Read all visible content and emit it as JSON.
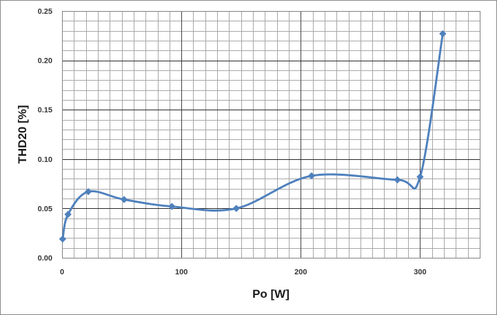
{
  "chart_data": {
    "type": "line",
    "title": "",
    "xlabel": "Po [W]",
    "ylabel": "THD20 [%]",
    "xlim": [
      0,
      350
    ],
    "ylim": [
      0,
      0.25
    ],
    "x_major_ticks": [
      0,
      100,
      200,
      300
    ],
    "x_major_tick_labels": [
      "0",
      "100",
      "200",
      "300"
    ],
    "y_major_ticks": [
      0,
      0.05,
      0.1,
      0.15,
      0.2,
      0.25
    ],
    "y_major_tick_labels": [
      "0.00",
      "0.05",
      "0.10",
      "0.15",
      "0.20",
      "0.25"
    ],
    "x_minor_step": 10,
    "y_minor_step": 0.01,
    "grid": true,
    "smooth": true,
    "series": [
      {
        "color": "#4f81bd",
        "marker": "diamond",
        "x": [
          0.5,
          5,
          22,
          52,
          92,
          146,
          209,
          281,
          300,
          319
        ],
        "y": [
          0.019,
          0.044,
          0.067,
          0.059,
          0.052,
          0.05,
          0.083,
          0.079,
          0.082,
          0.227
        ]
      }
    ]
  }
}
